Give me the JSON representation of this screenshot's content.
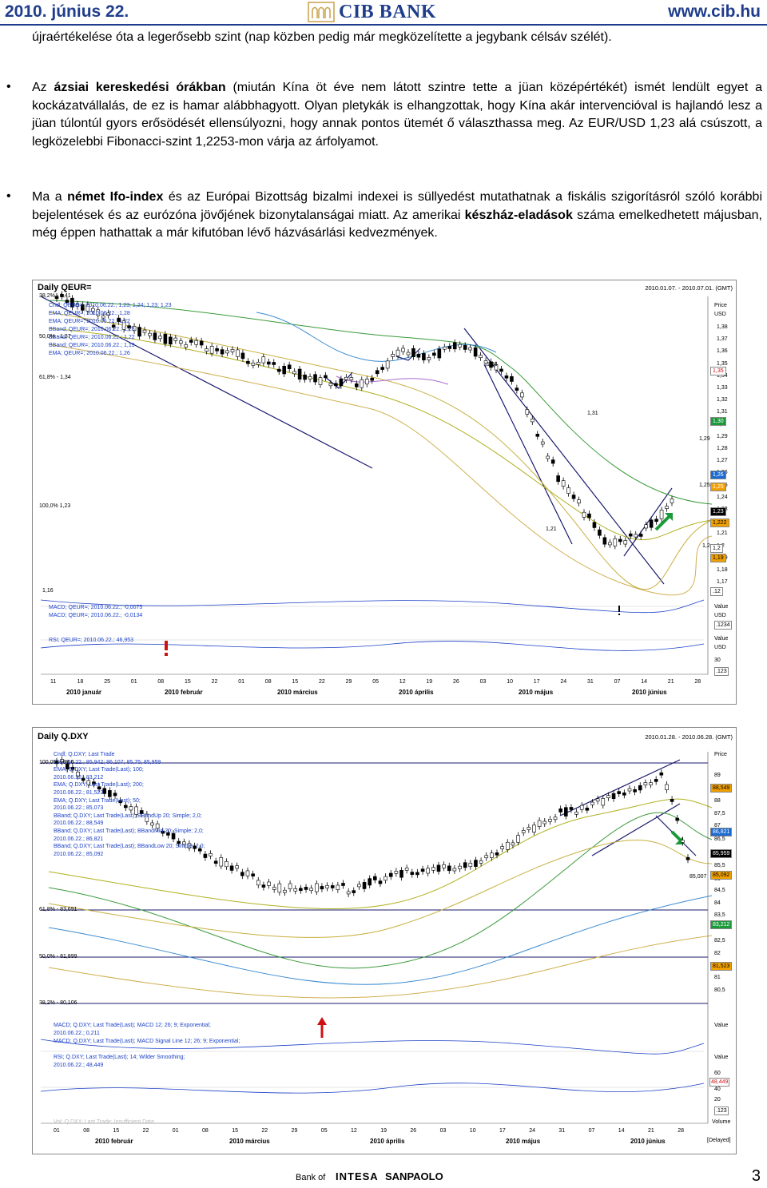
{
  "header": {
    "date": "2010. június 22.",
    "bank": "CIB BANK",
    "url": "www.cib.hu"
  },
  "paragraphs": {
    "p0": "újraértékelése óta a legerősebb szint (nap közben pedig már megközelítette a jegybank célsáv szélét).",
    "p1_a": "Az ",
    "p1_b": "ázsiai kereskedési órákban",
    "p1_c": " (miután Kína öt éve nem látott szintre tette a jüan középértékét) ismét lendült egyet a kockázatvállalás, de ez is hamar alábbhagyott. Olyan pletykák is elhangzottak, hogy Kína akár intervencióval is hajlandó lesz a jüan túlontúl gyors erősödését ellensúlyozni, hogy annak pontos ütemét ő választhassa meg. Az EUR/USD 1,23 alá csúszott, a legközelebbi Fibonacci-szint 1,2253-mon várja az árfolyamot.",
    "p2_a": "Ma a ",
    "p2_b": "német Ifo-index",
    "p2_c": " és az Európai Bizottság bizalmi indexei is süllyedést mutathatnak a fiskális szigorításról szóló korábbi bejelentések és az eurózóna jövőjének bizonytalanságai miatt. Az amerikai ",
    "p2_d": "készház-eladások",
    "p2_e": " száma emelkedhetett májusban, még éppen hathattak a már kifutóban lévő házvásárlási kedvezmények."
  },
  "chart1": {
    "title": "Daily QEUR=",
    "range": "2010.01.07. - 2010.07.01. (GMT)",
    "price_label": "Price",
    "usd_label": "USD",
    "legend": [
      "Cndl; QEUR=; 2010.06.22.; 1,23; 1,24; 1,23; 1,23",
      "EMA; QEUR=; 2010.06.22.; 1,28",
      "EMA; QEUR=; 2010.06.22.; 1,22",
      "BBand; QEUR=; 2010.06.22.; 1,25",
      "BBand; QEUR=; 2010.06.22.; 1,22",
      "BBand; QEUR=; 2010.06.22.; 1,19",
      "EMA; QEUR=; 2010.06.22.; 1,26"
    ],
    "fib": [
      "38,2% - 1,41",
      "50,0% - 1,37",
      "61,8% - 1,34",
      "100,0% 1,23",
      "1,16"
    ],
    "annot": [
      "1,36",
      "1,31",
      "1,29",
      "1,25",
      "1,21",
      "1,2"
    ],
    "y_ticks": [
      "1,38",
      "1,37",
      "1,36",
      "1,35",
      "1,34",
      "1,33",
      "1,32",
      "1,31",
      "1,3",
      "1,29",
      "1,28",
      "1,27",
      "1,26",
      "1,25",
      "1,24",
      "1,23",
      "1,22",
      "1,21",
      "1,2",
      "1,19",
      "1,18",
      "1,17"
    ],
    "y_boxes": [
      "1,35",
      "1,30",
      "1,26",
      "1,25",
      "1,23",
      "1,222",
      "1,2",
      "1,19",
      ".12"
    ],
    "macd": [
      "MACD; QEUR=; 2010.06.22.; -0,0075",
      "MACD; QEUR=; 2010.06.22.; -0,0134"
    ],
    "rsi": "RSI; QEUR=; 2010.06.22.; 46,953",
    "value_label": "Value",
    "macd_box": ".1234",
    "rsi_tick": "30",
    "rsi_box": ".123",
    "x_days": [
      "11",
      "18",
      "25",
      "01",
      "08",
      "15",
      "22",
      "01",
      "08",
      "15",
      "22",
      "29",
      "05",
      "12",
      "19",
      "26",
      "03",
      "10",
      "17",
      "24",
      "31",
      "07",
      "14",
      "21",
      "28"
    ],
    "x_months": [
      "2010 január",
      "2010 február",
      "2010 március",
      "2010 április",
      "2010 május",
      "2010 június"
    ]
  },
  "chart2": {
    "title": "Daily Q.DXY",
    "range": "2010.01.28. - 2010.06.28. (GMT)",
    "price_label": "Price",
    "legend": [
      "Cndl; Q.DXY; Last Trade",
      "2010.06.22.; 85,942; 86,107; 85,75; 85,959",
      "EMA; Q.DXY; Last Trade(Last); 100;",
      "2010.06.22.; 83,212",
      "EMA; Q.DXY; Last Trade(Last); 200;",
      "2010.06.22.; 81,523",
      "EMA; Q.DXY; Last Trade(Last); 50;",
      "2010.06.22.; 85,073",
      "BBand; Q.DXY; Last Trade(Last); BBandUp 20; Simple; 2,0;",
      "2010.06.22.; 88,549",
      "BBand; Q.DXY; Last Trade(Last); BBandMid 20; Simple; 2,0;",
      "2010.06.22.; 86,821",
      "BBand; Q.DXY; Last Trade(Last); BBandLow 20; Simple; 2,0;",
      "2010.06.22.; 85,092"
    ],
    "fib": [
      "100,0% - 89,6",
      "61,8% - 83,691",
      "50,0% - 81,899",
      "38,2% - 80,106"
    ],
    "annot": "85,007",
    "y_ticks": [
      "89",
      "88",
      "87,5",
      "87",
      "86,5",
      "85,5",
      "85",
      "84,5",
      "84",
      "83,5",
      "83",
      "82,5",
      "82",
      "81",
      "80,5"
    ],
    "y_boxes": [
      "88,549",
      "86,821",
      "85,959",
      "85,092",
      "83,212",
      "81,523"
    ],
    "macd": [
      "MACD; Q.DXY; Last Trade(Last); MACD 12; 26; 9; Exponential;",
      "2010.06.22.; 0,211",
      "MACD; Q.DXY; Last Trade(Last); MACD Signal Line 12; 26; 9; Exponential;"
    ],
    "rsi": [
      "RSI; Q.DXY; Last Trade(Last); 14; Wilder Smoothing;",
      "2010.06.22.; 48,449"
    ],
    "vol": "Vol; Q.DXY; Last Trade; Insufficient Data",
    "value_label": "Value",
    "rsi_ticks": [
      "60",
      "40",
      "20"
    ],
    "rsi_box": "48,449",
    "box123": ".123",
    "volume_label": "Volume",
    "delayed": "[Delayed]",
    "x_days": [
      "01",
      "08",
      "15",
      "22",
      "01",
      "08",
      "15",
      "22",
      "29",
      "05",
      "12",
      "19",
      "26",
      "03",
      "10",
      "17",
      "24",
      "31",
      "07",
      "14",
      "21",
      "28"
    ],
    "x_months": [
      "2010 február",
      "2010 március",
      "2010 április",
      "2010 május",
      "2010 június"
    ]
  },
  "footer": {
    "bank_of": "Bank of",
    "intesa": "INTESA",
    "sanpaolo": "SANPAOLO",
    "page": "3"
  }
}
